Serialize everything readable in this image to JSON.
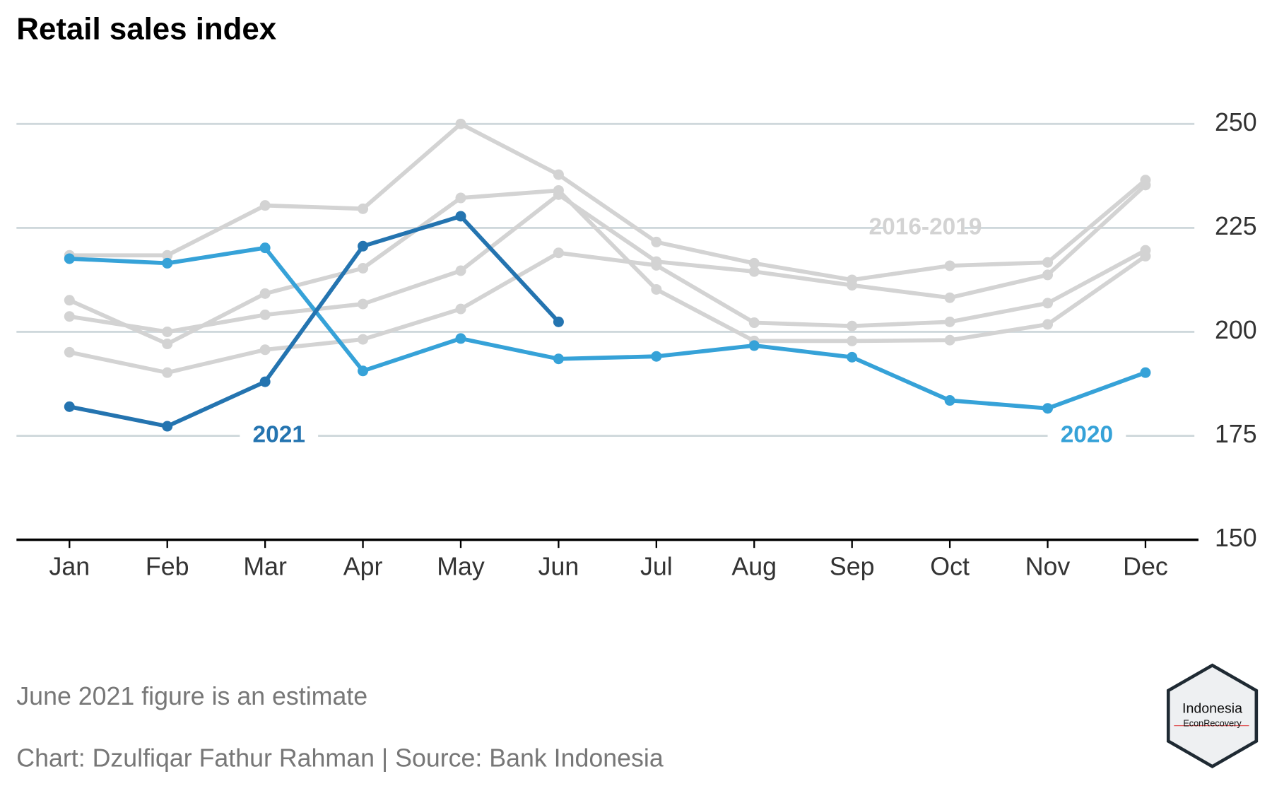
{
  "chart_data": {
    "type": "line",
    "title": "Retail sales index",
    "categories": [
      "Jan",
      "Feb",
      "Mar",
      "Apr",
      "May",
      "Jun",
      "Jul",
      "Aug",
      "Sep",
      "Oct",
      "Nov",
      "Dec"
    ],
    "series": [
      {
        "color": "#d3d3d3",
        "values": [
          218.4,
          218.4,
          230.4,
          229.6,
          250,
          237.8,
          221.6,
          216.5,
          212.5,
          215.9,
          216.7,
          236.5
        ]
      },
      {
        "color": "#d3d3d3",
        "values": [
          207.6,
          197.1,
          209.2,
          215.3,
          232.2,
          234,
          210.2,
          197.8,
          197.8,
          198,
          201.8,
          218.2
        ]
      },
      {
        "color": "#d3d3d3",
        "values": [
          203.7,
          200,
          204.1,
          206.7,
          214.7,
          233,
          216.9,
          214.5,
          211.2,
          208.2,
          213.7,
          235.3
        ]
      },
      {
        "color": "#d3d3d3",
        "values": [
          195.1,
          190.2,
          195.7,
          198.2,
          205.5,
          219,
          216,
          202.2,
          201.4,
          202.4,
          206.9,
          219.6
        ]
      },
      {
        "name": "2020",
        "color": "#36a2d8",
        "values": [
          217.6,
          216.5,
          220.2,
          190.6,
          198.4,
          193.5,
          194.1,
          196.7,
          193.9,
          183.5,
          181.6,
          190.2
        ]
      },
      {
        "name": "2021",
        "color": "#2474b0",
        "values": [
          182,
          177.3,
          188,
          220.6,
          227.8,
          202.4,
          null,
          null,
          null,
          null,
          null,
          null
        ]
      }
    ],
    "annotations": [
      "2016-2019"
    ],
    "ylim": [
      150,
      250
    ],
    "yticks": [
      150,
      175,
      200,
      225,
      250
    ],
    "grid": true,
    "note": "June 2021 figure is an estimate",
    "source": "Chart: Dzulfiqar Fathur Rahman | Source: Bank Indonesia",
    "logo": [
      "Indonesia",
      "EconRecovery"
    ]
  }
}
